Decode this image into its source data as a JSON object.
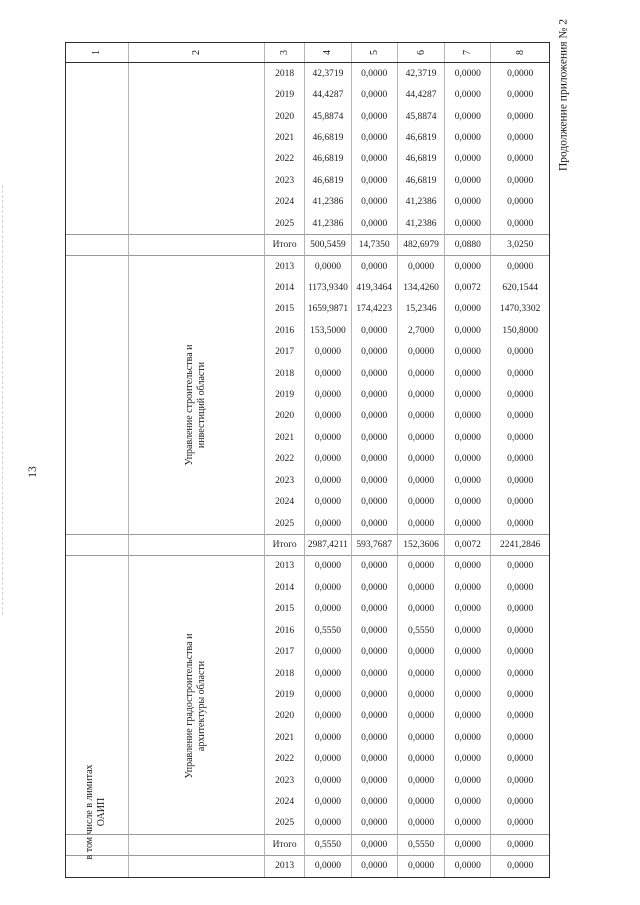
{
  "page": {
    "continuation_note": "Продолжение приложения № 2",
    "page_number": "13"
  },
  "table": {
    "column_numbers": [
      "1",
      "2",
      "3",
      "4",
      "5",
      "6",
      "7",
      "8"
    ],
    "sections": [
      {
        "department": "",
        "rows": [
          {
            "year": "2018",
            "values": [
              "42,3719",
              "0,0000",
              "42,3719",
              "0,0000",
              "0,0000"
            ]
          },
          {
            "year": "2019",
            "values": [
              "44,4287",
              "0,0000",
              "44,4287",
              "0,0000",
              "0,0000"
            ]
          },
          {
            "year": "2020",
            "values": [
              "45,8874",
              "0,0000",
              "45,8874",
              "0,0000",
              "0,0000"
            ]
          },
          {
            "year": "2021",
            "values": [
              "46,6819",
              "0,0000",
              "46,6819",
              "0,0000",
              "0,0000"
            ]
          },
          {
            "year": "2022",
            "values": [
              "46,6819",
              "0,0000",
              "46,6819",
              "0,0000",
              "0,0000"
            ]
          },
          {
            "year": "2023",
            "values": [
              "46,6819",
              "0,0000",
              "46,6819",
              "0,0000",
              "0,0000"
            ]
          },
          {
            "year": "2024",
            "values": [
              "41,2386",
              "0,0000",
              "41,2386",
              "0,0000",
              "0,0000"
            ]
          },
          {
            "year": "2025",
            "values": [
              "41,2386",
              "0,0000",
              "41,2386",
              "0,0000",
              "0,0000"
            ]
          },
          {
            "year": "Итого",
            "total": true,
            "values": [
              "500,5459",
              "14,7350",
              "482,6979",
              "0,0880",
              "3,0250"
            ]
          }
        ]
      },
      {
        "department": "Управление строительства и инвестиций области",
        "rows": [
          {
            "year": "2013",
            "values": [
              "0,0000",
              "0,0000",
              "0,0000",
              "0,0000",
              "0,0000"
            ]
          },
          {
            "year": "2014",
            "values": [
              "1173,9340",
              "419,3464",
              "134,4260",
              "0,0072",
              "620,1544"
            ]
          },
          {
            "year": "2015",
            "values": [
              "1659,9871",
              "174,4223",
              "15,2346",
              "0,0000",
              "1470,3302"
            ]
          },
          {
            "year": "2016",
            "values": [
              "153,5000",
              "0,0000",
              "2,7000",
              "0,0000",
              "150,8000"
            ]
          },
          {
            "year": "2017",
            "values": [
              "0,0000",
              "0,0000",
              "0,0000",
              "0,0000",
              "0,0000"
            ]
          },
          {
            "year": "2018",
            "values": [
              "0,0000",
              "0,0000",
              "0,0000",
              "0,0000",
              "0,0000"
            ]
          },
          {
            "year": "2019",
            "values": [
              "0,0000",
              "0,0000",
              "0,0000",
              "0,0000",
              "0,0000"
            ]
          },
          {
            "year": "2020",
            "values": [
              "0,0000",
              "0,0000",
              "0,0000",
              "0,0000",
              "0,0000"
            ]
          },
          {
            "year": "2021",
            "values": [
              "0,0000",
              "0,0000",
              "0,0000",
              "0,0000",
              "0,0000"
            ]
          },
          {
            "year": "2022",
            "values": [
              "0,0000",
              "0,0000",
              "0,0000",
              "0,0000",
              "0,0000"
            ]
          },
          {
            "year": "2023",
            "values": [
              "0,0000",
              "0,0000",
              "0,0000",
              "0,0000",
              "0,0000"
            ]
          },
          {
            "year": "2024",
            "values": [
              "0,0000",
              "0,0000",
              "0,0000",
              "0,0000",
              "0,0000"
            ]
          },
          {
            "year": "2025",
            "values": [
              "0,0000",
              "0,0000",
              "0,0000",
              "0,0000",
              "0,0000"
            ]
          },
          {
            "year": "Итого",
            "total": true,
            "values": [
              "2987,4211",
              "593,7687",
              "152,3606",
              "0,0072",
              "2241,2846"
            ]
          }
        ]
      },
      {
        "department": "Управление градостроительства и архитектуры области",
        "rows": [
          {
            "year": "2013",
            "values": [
              "0,0000",
              "0,0000",
              "0,0000",
              "0,0000",
              "0,0000"
            ]
          },
          {
            "year": "2014",
            "values": [
              "0,0000",
              "0,0000",
              "0,0000",
              "0,0000",
              "0,0000"
            ]
          },
          {
            "year": "2015",
            "values": [
              "0,0000",
              "0,0000",
              "0,0000",
              "0,0000",
              "0,0000"
            ]
          },
          {
            "year": "2016",
            "values": [
              "0,5550",
              "0,0000",
              "0,5550",
              "0,0000",
              "0,0000"
            ]
          },
          {
            "year": "2017",
            "values": [
              "0,0000",
              "0,0000",
              "0,0000",
              "0,0000",
              "0,0000"
            ]
          },
          {
            "year": "2018",
            "values": [
              "0,0000",
              "0,0000",
              "0,0000",
              "0,0000",
              "0,0000"
            ]
          },
          {
            "year": "2019",
            "values": [
              "0,0000",
              "0,0000",
              "0,0000",
              "0,0000",
              "0,0000"
            ]
          },
          {
            "year": "2020",
            "values": [
              "0,0000",
              "0,0000",
              "0,0000",
              "0,0000",
              "0,0000"
            ]
          },
          {
            "year": "2021",
            "values": [
              "0,0000",
              "0,0000",
              "0,0000",
              "0,0000",
              "0,0000"
            ]
          },
          {
            "year": "2022",
            "values": [
              "0,0000",
              "0,0000",
              "0,0000",
              "0,0000",
              "0,0000"
            ]
          },
          {
            "year": "2023",
            "values": [
              "0,0000",
              "0,0000",
              "0,0000",
              "0,0000",
              "0,0000"
            ]
          },
          {
            "year": "2024",
            "values": [
              "0,0000",
              "0,0000",
              "0,0000",
              "0,0000",
              "0,0000"
            ]
          },
          {
            "year": "2025",
            "values": [
              "0,0000",
              "0,0000",
              "0,0000",
              "0,0000",
              "0,0000"
            ]
          },
          {
            "year": "Итого",
            "total": true,
            "values": [
              "0,5550",
              "0,0000",
              "0,5550",
              "0,0000",
              "0,0000"
            ]
          }
        ]
      },
      {
        "department": "",
        "note": "в том числе в лимитах ОАИП",
        "rows": [
          {
            "year": "2013",
            "values": [
              "0,0000",
              "0,0000",
              "0,0000",
              "0,0000",
              "0,0000"
            ]
          }
        ]
      }
    ]
  }
}
